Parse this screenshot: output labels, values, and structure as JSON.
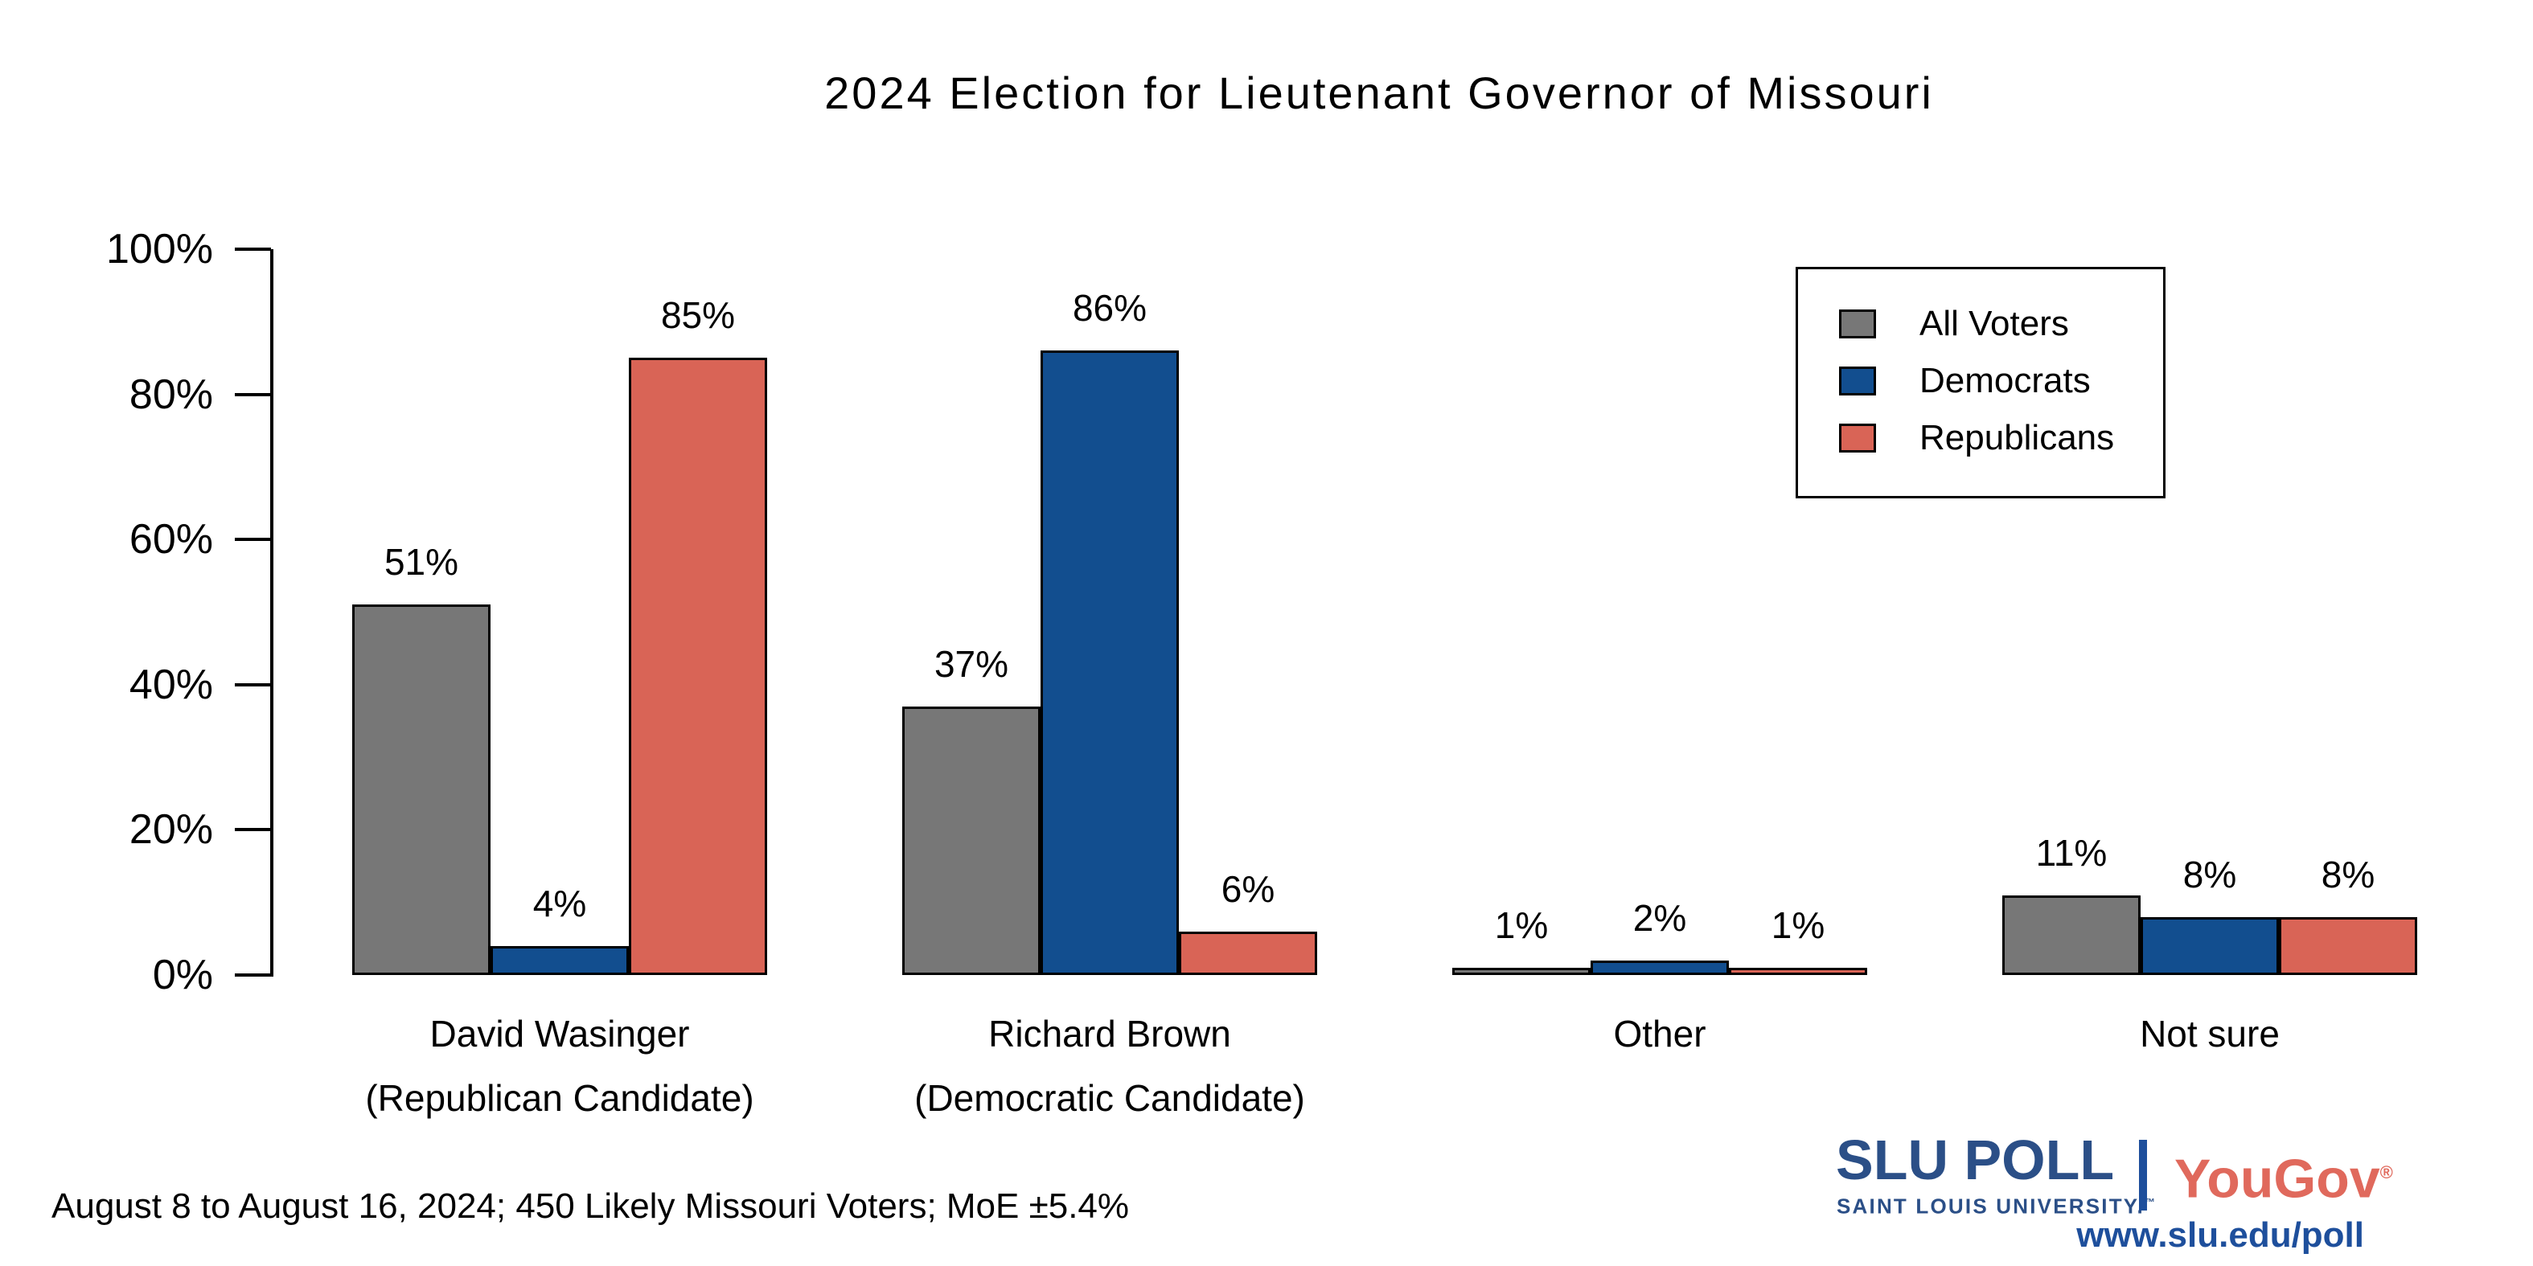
{
  "chart_data": {
    "type": "bar",
    "title": "2024 Election for Lieutenant Governor of Missouri",
    "categories": [
      [
        "David Wasinger",
        "(Republican Candidate)"
      ],
      [
        "Richard Brown",
        "(Democratic Candidate)"
      ],
      [
        "Other"
      ],
      [
        "Not sure"
      ]
    ],
    "series": [
      {
        "name": "All Voters",
        "color": "#777777",
        "values": [
          51,
          37,
          1,
          11
        ]
      },
      {
        "name": "Democrats",
        "color": "#124E8F",
        "values": [
          4,
          86,
          2,
          8
        ]
      },
      {
        "name": "Republicans",
        "color": "#D96456",
        "values": [
          85,
          6,
          1,
          8
        ]
      }
    ],
    "ylim": [
      0,
      100
    ],
    "yticks": [
      "0%",
      "20%",
      "40%",
      "60%",
      "80%",
      "100%"
    ],
    "grid": false,
    "legend_position": "upper right",
    "bar_outline_color": "#000000",
    "value_label_suffix": "%"
  },
  "footer": {
    "note": "August 8 to August 16, 2024; 450 Likely Missouri Voters; MoE ±5.4%"
  },
  "branding": {
    "slu_poll": "SLU POLL",
    "slu_subtitle": "SAINT LOUIS UNIVERSITY.",
    "slu_trademark": "™",
    "yougov": "YouGov",
    "yougov_registered": "®",
    "website": "www.slu.edu/poll",
    "slu_blue": "#2B4F87",
    "url_blue": "#1E4F9C",
    "yougov_red": "#E0695C"
  }
}
